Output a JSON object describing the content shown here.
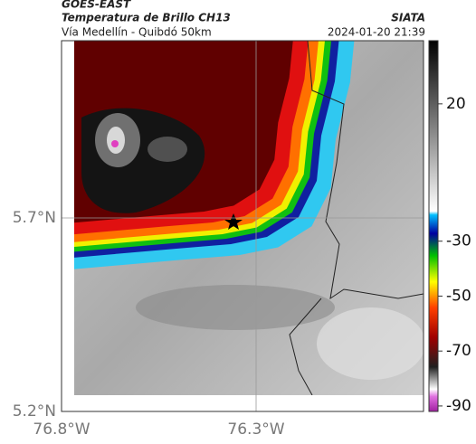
{
  "header": {
    "source": "GOES-EAST",
    "title": "Temperatura de Brillo CH13",
    "subtitle": "Vía Medellín - Quibdó 50km",
    "agency": "SIATA",
    "timestamp": "2024-01-20 21:39"
  },
  "map": {
    "lat_labels": [
      "5.7°N",
      "5.2°N"
    ],
    "lon_labels": [
      "76.8°W",
      "76.3°W"
    ]
  },
  "colorbar": {
    "range": [
      -92,
      43
    ],
    "ticks": [
      20,
      -30,
      -50,
      -70,
      -90
    ]
  }
}
